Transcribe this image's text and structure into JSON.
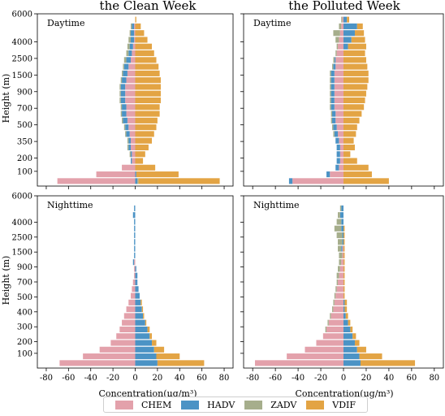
{
  "columns": [
    "the Clean Week",
    "the Polluted Week"
  ],
  "rows": [
    "Daytime",
    "Nighttime"
  ],
  "ylabel": "Height (m)",
  "xlabel": "Concentration(μg/m³)",
  "xlim": [
    -88,
    88
  ],
  "xticks": [
    -80,
    -60,
    -40,
    -20,
    0,
    20,
    40,
    60,
    80
  ],
  "colors": {
    "CHEM": "#e3a1ab",
    "HADV": "#4b93c5",
    "ZADV": "#a6ae8c",
    "VDIF": "#e3a444"
  },
  "legend": [
    {
      "name": "CHEM",
      "key": "CHEM"
    },
    {
      "name": "HADV",
      "key": "HADV"
    },
    {
      "name": "ZADV",
      "key": "ZADV"
    },
    {
      "name": "VDIF",
      "key": "VDIF"
    }
  ],
  "chart_data": [
    {
      "type": "bar",
      "column": "the Clean Week",
      "panel_label": "Daytime",
      "yticks": [
        "100",
        "200",
        "350",
        "500",
        "700",
        "900",
        "1500",
        "2500",
        "4000",
        "6000"
      ],
      "series": [
        {
          "name": "CHEM",
          "values": [
            -70,
            -35,
            -12,
            -3,
            -3,
            -4,
            -4,
            -5,
            -6,
            -7,
            -8,
            -8,
            -9,
            -9,
            -9,
            -8,
            -7,
            -6,
            -4,
            -3,
            -2,
            -1,
            -1,
            -1,
            0
          ]
        },
        {
          "name": "HADV",
          "values": [
            2,
            1,
            0,
            -1,
            -1,
            -2,
            -2,
            -3,
            -3,
            -4,
            -4,
            -4,
            -4,
            -4,
            -4,
            -4,
            -4,
            -4,
            -4,
            -3,
            -3,
            -3,
            -3,
            -2,
            0
          ]
        },
        {
          "name": "ZADV",
          "values": [
            1,
            0,
            0,
            0,
            -1,
            -1,
            -1,
            -1,
            -1,
            -1,
            -1,
            -1,
            -1,
            -1,
            -1,
            -1,
            -1,
            -1,
            -2,
            -2,
            -2,
            -2,
            -1,
            -1,
            0
          ]
        },
        {
          "name": "VDIF",
          "values": [
            73,
            38,
            18,
            7,
            9,
            12,
            15,
            17,
            19,
            20,
            22,
            22,
            23,
            23,
            23,
            23,
            22,
            21,
            19,
            17,
            15,
            11,
            8,
            5,
            1
          ]
        }
      ],
      "stacked": true
    },
    {
      "type": "bar",
      "column": "the Polluted Week",
      "panel_label": "Daytime",
      "yticks": [
        "100",
        "200",
        "350",
        "500",
        "700",
        "900",
        "1500",
        "2500",
        "4000",
        "6000"
      ],
      "series": [
        {
          "name": "CHEM",
          "values": [
            -45,
            -12,
            -4,
            -3,
            -3,
            -3,
            -4,
            -5,
            -6,
            -7,
            -7,
            -8,
            -8,
            -8,
            -8,
            -8,
            -8,
            -7,
            -7,
            -6,
            -5,
            -4,
            -3,
            -2,
            -1
          ]
        },
        {
          "name": "HADV",
          "values": [
            -3,
            -3,
            -3,
            -3,
            -3,
            -3,
            -3,
            -3,
            -3,
            -3,
            -3,
            -3,
            -3,
            -3,
            -3,
            -3,
            -3,
            -2,
            -1,
            0,
            4,
            7,
            10,
            12,
            3
          ]
        },
        {
          "name": "ZADV",
          "values": [
            0,
            0,
            0,
            0,
            0,
            0,
            0,
            -1,
            -1,
            -1,
            -1,
            -1,
            -1,
            -1,
            -1,
            -1,
            -1,
            -1,
            -1,
            -1,
            -1,
            -3,
            -6,
            -2,
            -1
          ]
        },
        {
          "name": "VDIF",
          "values": [
            40,
            25,
            22,
            12,
            6,
            10,
            9,
            11,
            12,
            14,
            16,
            18,
            19,
            20,
            21,
            22,
            22,
            21,
            20,
            19,
            16,
            12,
            8,
            5,
            2
          ]
        }
      ],
      "stacked": true
    },
    {
      "type": "bar",
      "column": "the Clean Week",
      "panel_label": "Nighttime",
      "yticks": [
        "100",
        "200",
        "300",
        "400",
        "500",
        "700",
        "900",
        "1500",
        "2500",
        "4000",
        "6000"
      ],
      "series": [
        {
          "name": "CHEM",
          "values": [
            -68,
            -47,
            -32,
            -22,
            -17,
            -14,
            -12,
            -10,
            -8,
            -6,
            -4,
            -3,
            -2,
            -1,
            -1,
            -1,
            0,
            0,
            0,
            0,
            0,
            0,
            0,
            0,
            0
          ]
        },
        {
          "name": "HADV",
          "values": [
            20,
            19,
            17,
            15,
            13,
            11,
            9,
            7,
            6,
            5,
            4,
            3,
            2,
            2,
            1,
            -1,
            -1,
            -1,
            -1,
            -1,
            -1,
            -1,
            -2,
            -1,
            0
          ]
        },
        {
          "name": "ZADV",
          "values": [
            0,
            0,
            0,
            0,
            0,
            0,
            0,
            0,
            0,
            0,
            0,
            0,
            0,
            0,
            0,
            0,
            0,
            0,
            0,
            0,
            0,
            0,
            0,
            0,
            0
          ]
        },
        {
          "name": "VDIF",
          "values": [
            42,
            21,
            9,
            4,
            2,
            2,
            1,
            1,
            1,
            1,
            0,
            0,
            0,
            0,
            0,
            0,
            0,
            0,
            0,
            0,
            0,
            0,
            0,
            0,
            0
          ]
        }
      ],
      "stacked": true
    },
    {
      "type": "bar",
      "column": "the Polluted Week",
      "panel_label": "Nighttime",
      "yticks": [
        "100",
        "200",
        "300",
        "400",
        "500",
        "700",
        "900",
        "1500",
        "2500",
        "4000",
        "6000"
      ],
      "series": [
        {
          "name": "CHEM",
          "values": [
            -78,
            -50,
            -34,
            -24,
            -18,
            -15,
            -13,
            -11,
            -9,
            -8,
            -7,
            -6,
            -5,
            -4,
            -3,
            -2,
            -1,
            -1,
            0,
            0,
            0,
            0,
            0,
            0,
            0
          ]
        },
        {
          "name": "HADV",
          "values": [
            15,
            14,
            12,
            10,
            8,
            6,
            4,
            2,
            1,
            1,
            0,
            0,
            0,
            0,
            0,
            0,
            0,
            -1,
            -1,
            -1,
            -2,
            -2,
            -3,
            -2,
            0
          ]
        },
        {
          "name": "ZADV",
          "values": [
            0,
            0,
            0,
            0,
            0,
            -1,
            -1,
            -1,
            -1,
            -1,
            -1,
            -1,
            -1,
            -2,
            -2,
            -2,
            -3,
            -3,
            -4,
            -5,
            -6,
            -4,
            -2,
            -1,
            0
          ]
        },
        {
          "name": "VDIF",
          "values": [
            48,
            20,
            8,
            4,
            3,
            2,
            2,
            2,
            2,
            2,
            1,
            1,
            1,
            1,
            1,
            1,
            1,
            1,
            1,
            1,
            1,
            0,
            0,
            0,
            0
          ]
        }
      ],
      "stacked": true
    }
  ]
}
